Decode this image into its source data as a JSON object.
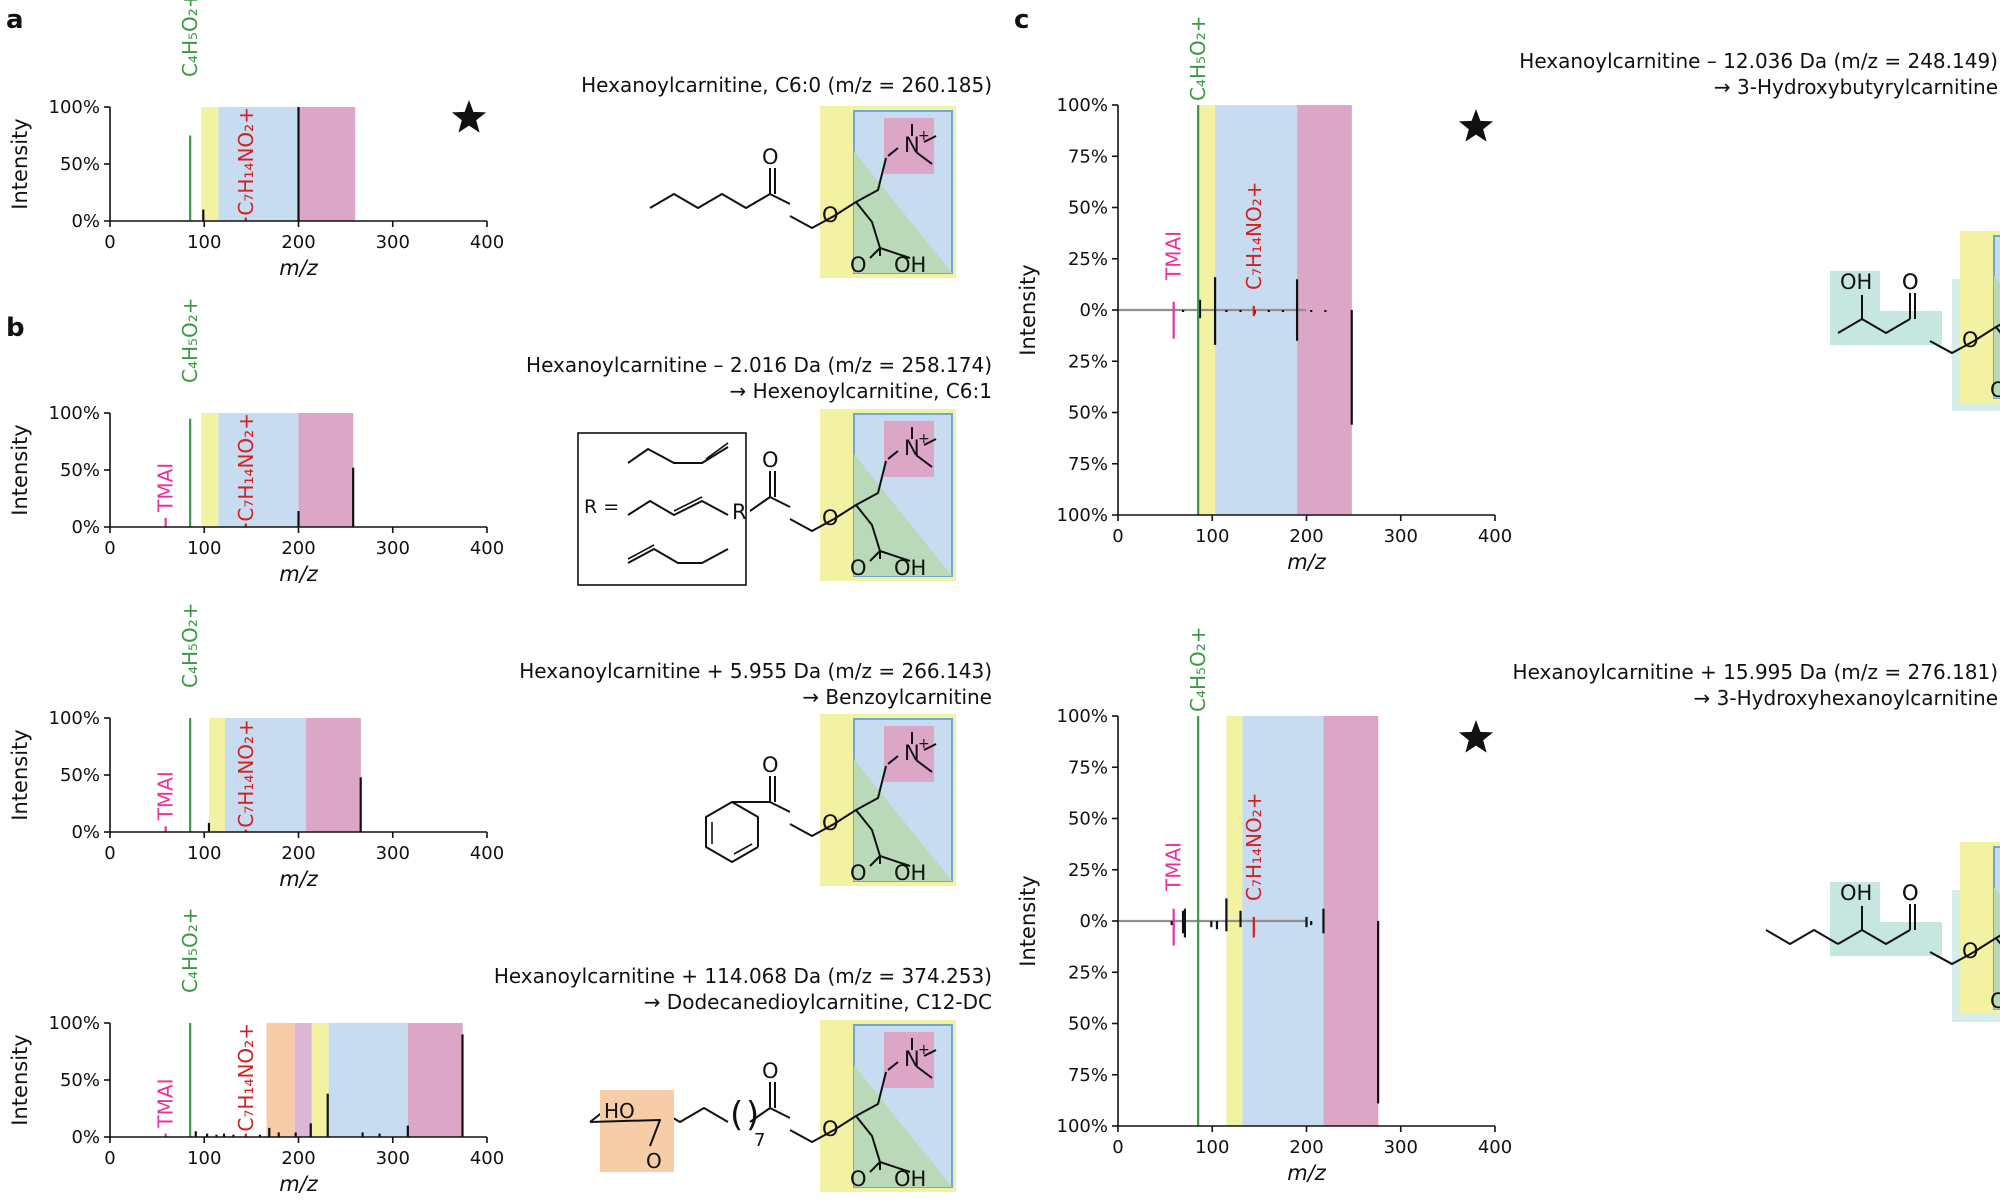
{
  "colors": {
    "yellow": "#f2f2a2",
    "blue": "#c7dcf0",
    "pink": "#dca6c6",
    "green": "#b9d9b8",
    "orange": "#f6cda6",
    "purple": "#dbb6d6",
    "teal": "#c6e6e0",
    "frag_green": "#3c9a46",
    "frag_red": "#d42020",
    "frag_pink": "#e8339a",
    "gray_line": "#909090",
    "bar": "#111111",
    "text": "#111111"
  },
  "icons": {
    "star": "star-icon"
  },
  "chart_data": [
    {
      "panel": "a",
      "type": "bar",
      "label": "a",
      "title": "Hexanoylcarnitine, C6:0 (m/z = 260.185)",
      "title2": "",
      "xlabel": "m/z",
      "ylabel": "Intensity",
      "xlim": [
        0,
        400
      ],
      "ylim": [
        0,
        100
      ],
      "xticks": [
        0,
        100,
        200,
        300,
        400
      ],
      "yticks": [
        {
          "v": 0,
          "label": "0%"
        },
        {
          "v": 50,
          "label": "50%"
        },
        {
          "v": 100,
          "label": "100%"
        }
      ],
      "regions": [
        {
          "x0": 97,
          "x1": 115,
          "color": "yellow"
        },
        {
          "x0": 115,
          "x1": 200,
          "color": "blue"
        },
        {
          "x0": 200,
          "x1": 260.185,
          "color": "pink"
        }
      ],
      "fragments": [
        {
          "name": "C₄H₅O₂+",
          "x": 85.03,
          "value": 75,
          "color": "frag_green",
          "label_top": 0
        },
        {
          "name": "C₇H₁₄NO₂+",
          "x": 144.1,
          "value": 3,
          "color": "frag_red",
          "label_top": 96
        }
      ],
      "peaks": [
        {
          "x": 99,
          "value": 10
        },
        {
          "x": 200,
          "value": 100
        }
      ],
      "star": true,
      "acyl": "hexanoyl"
    },
    {
      "panel": "b1",
      "type": "bar",
      "label": "b",
      "title": "Hexanoylcarnitine – 2.016 Da (m/z = 258.174)",
      "title2": "→ Hexenoylcarnitine, C6:1",
      "xlabel": "m/z",
      "ylabel": "Intensity",
      "xlim": [
        0,
        400
      ],
      "ylim": [
        0,
        100
      ],
      "xticks": [
        0,
        100,
        200,
        300,
        400
      ],
      "yticks": [
        {
          "v": 0,
          "label": "0%"
        },
        {
          "v": 50,
          "label": "50%"
        },
        {
          "v": 100,
          "label": "100%"
        }
      ],
      "regions": [
        {
          "x0": 97,
          "x1": 115,
          "color": "yellow"
        },
        {
          "x0": 115,
          "x1": 200,
          "color": "blue"
        },
        {
          "x0": 200,
          "x1": 258.174,
          "color": "pink"
        }
      ],
      "fragments": [
        {
          "name": "TMAI",
          "x": 59.07,
          "value": 8,
          "color": "frag_pink",
          "label_top": 40
        },
        {
          "name": "C₄H₅O₂+",
          "x": 85.03,
          "value": 95,
          "color": "frag_green",
          "label_top": 0
        },
        {
          "name": "C₇H₁₄NO₂+",
          "x": 144.1,
          "value": 3,
          "color": "frag_red",
          "label_top": 96
        }
      ],
      "peaks": [
        {
          "x": 200,
          "value": 14
        },
        {
          "x": 258,
          "value": 52
        }
      ],
      "star": false,
      "acyl": "R",
      "r_label": "R ="
    },
    {
      "panel": "b2",
      "type": "bar",
      "label": "",
      "title": "Hexanoylcarnitine + 5.955 Da (m/z = 266.143)",
      "title2": "→ Benzoylcarnitine",
      "xlabel": "m/z",
      "ylabel": "Intensity",
      "xlim": [
        0,
        400
      ],
      "ylim": [
        0,
        100
      ],
      "xticks": [
        0,
        100,
        200,
        300,
        400
      ],
      "yticks": [
        {
          "v": 0,
          "label": "0%"
        },
        {
          "v": 50,
          "label": "50%"
        },
        {
          "v": 100,
          "label": "100%"
        }
      ],
      "regions": [
        {
          "x0": 105,
          "x1": 122,
          "color": "yellow"
        },
        {
          "x0": 122,
          "x1": 208,
          "color": "blue"
        },
        {
          "x0": 208,
          "x1": 266.143,
          "color": "pink"
        }
      ],
      "fragments": [
        {
          "name": "TMAI",
          "x": 59.07,
          "value": 5,
          "color": "frag_pink",
          "label_top": 40
        },
        {
          "name": "C₄H₅O₂+",
          "x": 85.03,
          "value": 100,
          "color": "frag_green",
          "label_top": 0
        },
        {
          "name": "C₇H₁₄NO₂+",
          "x": 144.1,
          "value": 2,
          "color": "frag_red",
          "label_top": 96
        }
      ],
      "peaks": [
        {
          "x": 105,
          "value": 8
        },
        {
          "x": 266,
          "value": 48
        }
      ],
      "star": false,
      "acyl": "benzoyl"
    },
    {
      "panel": "b3",
      "type": "bar",
      "label": "",
      "title": "Hexanoylcarnitine + 114.068 Da (m/z = 374.253)",
      "title2": "→ Dodecanedioylcarnitine, C12-DC",
      "xlabel": "m/z",
      "ylabel": "Intensity",
      "xlim": [
        0,
        400
      ],
      "ylim": [
        0,
        100
      ],
      "xticks": [
        0,
        100,
        200,
        300,
        400
      ],
      "yticks": [
        {
          "v": 0,
          "label": "0%"
        },
        {
          "v": 50,
          "label": "50%"
        },
        {
          "v": 100,
          "label": "100%"
        }
      ],
      "regions": [
        {
          "x0": 166,
          "x1": 196,
          "color": "orange"
        },
        {
          "x0": 196,
          "x1": 214,
          "color": "purple"
        },
        {
          "x0": 214,
          "x1": 232,
          "color": "yellow"
        },
        {
          "x0": 232,
          "x1": 316,
          "color": "blue"
        },
        {
          "x0": 316,
          "x1": 374.253,
          "color": "pink"
        }
      ],
      "fragments": [
        {
          "name": "TMAI",
          "x": 59.07,
          "value": 3,
          "color": "frag_pink",
          "label_top": 40
        },
        {
          "name": "C₄H₅O₂+",
          "x": 85.03,
          "value": 100,
          "color": "frag_green",
          "label_top": 0
        },
        {
          "name": "C₇H₁₄NO₂+",
          "x": 144.1,
          "value": 3,
          "color": "frag_red",
          "label_top": 96
        }
      ],
      "peaks": [
        {
          "x": 91,
          "value": 5
        },
        {
          "x": 103,
          "value": 3
        },
        {
          "x": 113,
          "value": 2
        },
        {
          "x": 121,
          "value": 3
        },
        {
          "x": 131,
          "value": 2
        },
        {
          "x": 159,
          "value": 2
        },
        {
          "x": 169,
          "value": 8
        },
        {
          "x": 179,
          "value": 4
        },
        {
          "x": 197,
          "value": 4
        },
        {
          "x": 213,
          "value": 12
        },
        {
          "x": 231,
          "value": 38
        },
        {
          "x": 268,
          "value": 4
        },
        {
          "x": 286,
          "value": 3
        },
        {
          "x": 316,
          "value": 10
        },
        {
          "x": 374,
          "value": 90
        }
      ],
      "star": false,
      "acyl": "dodecanedioyl",
      "repeat": "7"
    },
    {
      "panel": "c1",
      "type": "bar",
      "label": "c",
      "title": "Hexanoylcarnitine – 12.036 Da (m/z = 248.149)",
      "title2": "→ 3-Hydroxybutyrylcarnitine",
      "xlabel": "m/z",
      "ylabel": "Intensity",
      "xlim": [
        0,
        400
      ],
      "ylim": [
        -100,
        100
      ],
      "xticks": [
        0,
        100,
        200,
        300,
        400
      ],
      "yticks": [
        {
          "v": 100,
          "label": "100%"
        },
        {
          "v": 75,
          "label": "75%"
        },
        {
          "v": 50,
          "label": "50%"
        },
        {
          "v": 25,
          "label": "25%"
        },
        {
          "v": 0,
          "label": "0%"
        },
        {
          "v": -25,
          "label": "25%"
        },
        {
          "v": -50,
          "label": "50%"
        },
        {
          "v": -75,
          "label": "75%"
        },
        {
          "v": -100,
          "label": "100%"
        }
      ],
      "regions": [
        {
          "x0": 85,
          "x1": 103,
          "color": "yellow"
        },
        {
          "x0": 103,
          "x1": 190,
          "color": "blue"
        },
        {
          "x0": 190,
          "x1": 248.149,
          "color": "pink"
        }
      ],
      "fragments": [
        {
          "name": "TMAI",
          "x": 59.07,
          "value": -14,
          "color": "frag_pink",
          "label_top": 45,
          "line_to": 4
        },
        {
          "name": "C₄H₅O₂+",
          "x": 85.03,
          "value": 100,
          "color": "frag_green",
          "label_top": 0,
          "line_to": -100
        },
        {
          "name": "C₇H₁₄NO₂+",
          "x": 144.1,
          "value": -3,
          "color": "frag_red",
          "label_top": 58,
          "line_to": 2
        }
      ],
      "peaks": [
        {
          "x": 69,
          "value": -1
        },
        {
          "x": 87,
          "value": 5
        },
        {
          "x": 87,
          "value": -4
        },
        {
          "x": 103,
          "value": 16
        },
        {
          "x": 103,
          "value": -17
        },
        {
          "x": 115,
          "value": -1
        },
        {
          "x": 130,
          "value": -1
        },
        {
          "x": 145,
          "value": -2
        },
        {
          "x": 160,
          "value": -1
        },
        {
          "x": 175,
          "value": -1
        },
        {
          "x": 190,
          "value": 15
        },
        {
          "x": 190,
          "value": -15
        },
        {
          "x": 205,
          "value": -1
        },
        {
          "x": 220,
          "value": -1
        },
        {
          "x": 248,
          "value": -56
        }
      ],
      "star": true,
      "acyl": "3-hydroxybutyryl",
      "oh_label": "OH"
    },
    {
      "panel": "c2",
      "type": "bar",
      "label": "",
      "title": "Hexanoylcarnitine + 15.995 Da (m/z = 276.181)",
      "title2": "→ 3-Hydroxyhexanoylcarnitine",
      "xlabel": "m/z",
      "ylabel": "Intensity",
      "xlim": [
        0,
        400
      ],
      "ylim": [
        -100,
        100
      ],
      "xticks": [
        0,
        100,
        200,
        300,
        400
      ],
      "yticks": [
        {
          "v": 100,
          "label": "100%"
        },
        {
          "v": 75,
          "label": "75%"
        },
        {
          "v": 50,
          "label": "50%"
        },
        {
          "v": 25,
          "label": "25%"
        },
        {
          "v": 0,
          "label": "0%"
        },
        {
          "v": -25,
          "label": "25%"
        },
        {
          "v": -50,
          "label": "50%"
        },
        {
          "v": -75,
          "label": "75%"
        },
        {
          "v": -100,
          "label": "100%"
        }
      ],
      "regions": [
        {
          "x0": 115,
          "x1": 132,
          "color": "yellow"
        },
        {
          "x0": 132,
          "x1": 218,
          "color": "blue"
        },
        {
          "x0": 218,
          "x1": 276.181,
          "color": "pink"
        }
      ],
      "fragments": [
        {
          "name": "TMAI",
          "x": 59.07,
          "value": -12,
          "color": "frag_pink",
          "label_top": 45,
          "line_to": 6
        },
        {
          "name": "C₄H₅O₂+",
          "x": 85.03,
          "value": 100,
          "color": "frag_green",
          "label_top": 0,
          "line_to": -100
        },
        {
          "name": "C₇H₁₄NO₂+",
          "x": 144.1,
          "value": -8,
          "color": "frag_red",
          "label_top": 63,
          "line_to": 2
        }
      ],
      "peaks": [
        {
          "x": 57,
          "value": -2
        },
        {
          "x": 69,
          "value": 5
        },
        {
          "x": 69,
          "value": -6
        },
        {
          "x": 71,
          "value": 6
        },
        {
          "x": 71,
          "value": -8
        },
        {
          "x": 99,
          "value": -3
        },
        {
          "x": 105,
          "value": -4
        },
        {
          "x": 115,
          "value": 11
        },
        {
          "x": 115,
          "value": -5
        },
        {
          "x": 130,
          "value": 5
        },
        {
          "x": 130,
          "value": -3
        },
        {
          "x": 200,
          "value": 2
        },
        {
          "x": 200,
          "value": -3
        },
        {
          "x": 205,
          "value": -2
        },
        {
          "x": 218,
          "value": 6
        },
        {
          "x": 218,
          "value": -6
        },
        {
          "x": 276,
          "value": -89
        }
      ],
      "star": true,
      "acyl": "3-hydroxyhexanoyl",
      "oh_label": "OH"
    }
  ],
  "structure_labels": {
    "o": "O",
    "oh": "OH",
    "n": "N",
    "plus": "+",
    "ho": "HO"
  }
}
